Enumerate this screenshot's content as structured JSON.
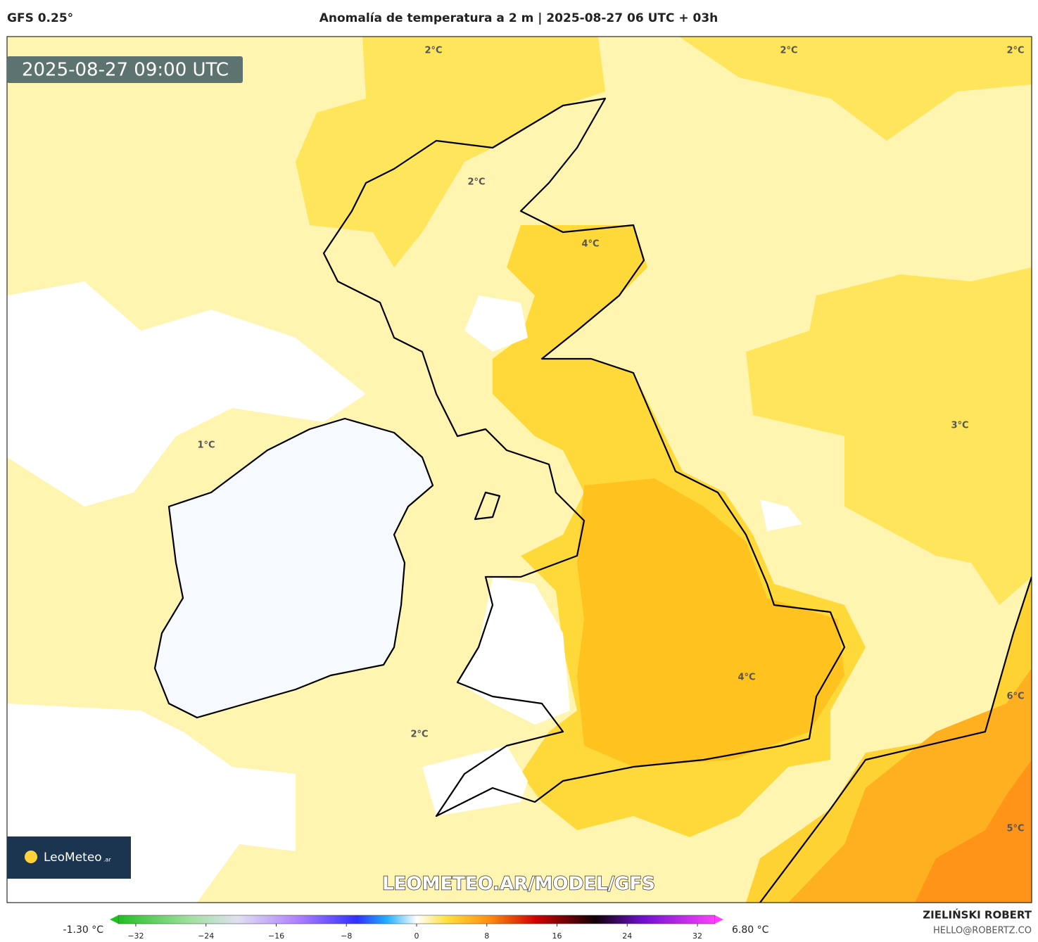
{
  "header": {
    "model": "GFS 0.25°",
    "title": "Anomalía de temperatura a 2 m | 2025-08-27 06 UTC + 03h"
  },
  "map": {
    "timestamp": "2025-08-27 09:00 UTC",
    "contour_labels": [
      "2°C",
      "2°C",
      "2°C",
      "2°C",
      "4°C",
      "1°C",
      "3°C",
      "2°C",
      "4°C",
      "6°C",
      "5°C"
    ],
    "logo": "LeoMeteo",
    "logo_suffix": ".ar",
    "watermark": "LEOMETEO.AR/MODEL/GFS"
  },
  "colorbar": {
    "min_label": "-1.30 °C",
    "max_label": "6.80 °C",
    "lim": [
      -34,
      34
    ],
    "ticks": [
      {
        "value": -32,
        "label": "−32"
      },
      {
        "value": -24,
        "label": "−24"
      },
      {
        "value": -16,
        "label": "−16"
      },
      {
        "value": -8,
        "label": "−8"
      },
      0,
      8,
      16,
      24,
      32
    ]
  },
  "credits": {
    "author": "ZIELIŃSKI ROBERT",
    "contact": "HELLO@ROBERTZ.CO"
  }
}
